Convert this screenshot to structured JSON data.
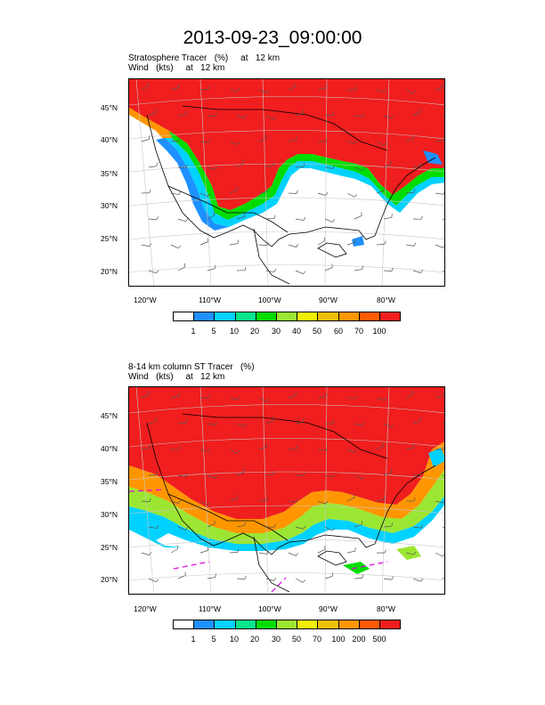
{
  "page_title": "2013-09-23_09:00:00",
  "colors": {
    "white": "#ffffff",
    "blue": "#1e90ff",
    "cyan": "#00d2ff",
    "teal": "#00e68c",
    "green": "#00dc00",
    "lightgreen": "#9be632",
    "yellow": "#f0f000",
    "gold": "#f0be00",
    "orange": "#ff9600",
    "darkorange": "#ff5a00",
    "red": "#f01e1e"
  },
  "panels": [
    {
      "field_label": "Stratosphere Tracer   (%)     at   12 km",
      "wind_label": "Wind   (kts)     at   12 km",
      "lat_ticks": [
        "45°N",
        "40°N",
        "35°N",
        "30°N",
        "25°N",
        "20°N"
      ],
      "lon_ticks": [
        "120°W",
        "110°W",
        "100°W",
        "90°W",
        "80°W"
      ],
      "colorbar": {
        "labels": [
          "1",
          "5",
          "10",
          "20",
          "30",
          "40",
          "50",
          "60",
          "70",
          "100"
        ]
      }
    },
    {
      "field_label": "8-14 km column ST Tracer   (%)",
      "wind_label": "Wind   (kts)     at   12 km",
      "lat_ticks": [
        "45°N",
        "40°N",
        "35°N",
        "30°N",
        "25°N",
        "20°N"
      ],
      "lon_ticks": [
        "120°W",
        "110°W",
        "100°W",
        "90°W",
        "80°W"
      ],
      "colorbar": {
        "labels": [
          "1",
          "5",
          "10",
          "20",
          "30",
          "50",
          "70",
          "100",
          "200",
          "500"
        ]
      }
    }
  ]
}
